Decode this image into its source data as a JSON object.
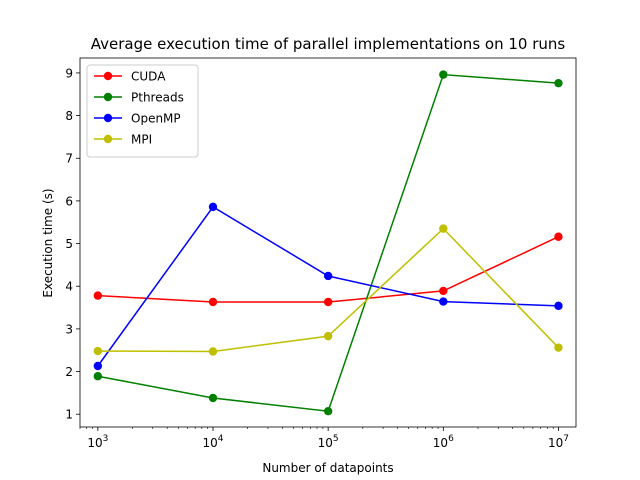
{
  "chart_data": {
    "type": "line",
    "title": "Average execution time of parallel implementations on 10 runs",
    "xlabel": "Number of datapoints",
    "ylabel": "Execution time (s)",
    "x_scale": "log",
    "x": [
      1000,
      10000,
      100000,
      1000000,
      10000000
    ],
    "x_tick_labels": [
      {
        "base": "10",
        "exp": "3"
      },
      {
        "base": "10",
        "exp": "4"
      },
      {
        "base": "10",
        "exp": "5"
      },
      {
        "base": "10",
        "exp": "6"
      },
      {
        "base": "10",
        "exp": "7"
      }
    ],
    "xlim": [
      700,
      14200000
    ],
    "ylim": [
      0.7,
      9.35
    ],
    "y_ticks": [
      1,
      2,
      3,
      4,
      5,
      6,
      7,
      8,
      9
    ],
    "grid": false,
    "legend": "top-left",
    "series": [
      {
        "name": "CUDA",
        "color": "#ff0000",
        "values": [
          3.78,
          3.63,
          3.63,
          3.89,
          5.16
        ]
      },
      {
        "name": "Pthreads",
        "color": "#008000",
        "values": [
          1.89,
          1.38,
          1.07,
          8.96,
          8.76
        ]
      },
      {
        "name": "OpenMP",
        "color": "#0000ff",
        "values": [
          2.13,
          5.86,
          4.24,
          3.64,
          3.54
        ]
      },
      {
        "name": "MPI",
        "color": "#bfbf00",
        "values": [
          2.48,
          2.47,
          2.83,
          5.35,
          2.56
        ]
      }
    ]
  }
}
